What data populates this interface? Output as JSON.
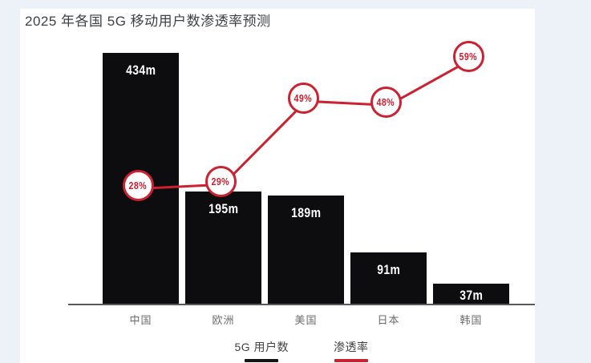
{
  "page": {
    "background_color": "#edf1f8",
    "card_background_color": "#ffffff"
  },
  "header": {
    "title": "2025 年各国 5G 移动用户数渗透率预测"
  },
  "chart_data": {
    "type": "combo-bar-line",
    "title": "2025 年各国 5G 移动用户数渗透率预测",
    "categories": [
      "中国",
      "欧洲",
      "美国",
      "日本",
      "韩国"
    ],
    "series": [
      {
        "name": "5G 用户数",
        "type": "bar",
        "unit": "m",
        "values": [
          434,
          195,
          189,
          91,
          37
        ],
        "labels": [
          "434m",
          "195m",
          "189m",
          "91m",
          "37m"
        ],
        "color": "#0d0d0f",
        "label_color": "#ffffff"
      },
      {
        "name": "渗透率",
        "type": "line",
        "unit": "%",
        "values": [
          28,
          29,
          49,
          48,
          59
        ],
        "labels": [
          "28%",
          "29%",
          "49%",
          "48%",
          "59%"
        ],
        "color": "#cc2130",
        "marker_fill": "#ffffff"
      }
    ],
    "xlabel": "",
    "ylabel": "",
    "grid": false,
    "value_axis_visible": false,
    "axis_color": "#58595b",
    "legend_position": "bottom"
  },
  "legend": {
    "items": [
      {
        "label": "5G 用户数",
        "underline_color": "#141416"
      },
      {
        "label": "渗透率",
        "underline_color": "#cc2130"
      }
    ]
  }
}
